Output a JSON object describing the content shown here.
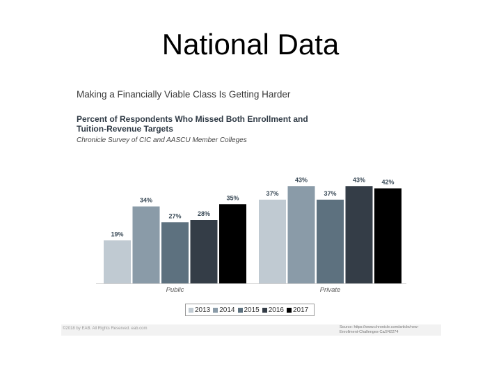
{
  "slide": {
    "title": "National Data"
  },
  "figure": {
    "headline": "Making a Financially Viable Class Is Getting Harder",
    "subtitle": "Percent of Respondents Who Missed Both Enrollment and Tuition-Revenue Targets",
    "survey": "Chronicle Survey of CIC and AASCU Member Colleges",
    "footer_left": "©2018 by EAB. All Rights Reserved. eab.com",
    "source_note": "Source: https://www.chronicle.com/article/new-Enrollment-Challenges-Ca/242274"
  },
  "chart_data": {
    "type": "bar",
    "categories": [
      "Public",
      "Private"
    ],
    "series": [
      {
        "name": "2013",
        "values": [
          19,
          37
        ],
        "color": "#c0cad2"
      },
      {
        "name": "2014",
        "values": [
          34,
          43
        ],
        "color": "#8a9ba8"
      },
      {
        "name": "2015",
        "values": [
          27,
          37
        ],
        "color": "#5d717f"
      },
      {
        "name": "2016",
        "values": [
          28,
          43
        ],
        "color": "#343d47"
      },
      {
        "name": "2017",
        "values": [
          35,
          42
        ],
        "color": "#000000"
      }
    ],
    "value_labels": [
      [
        "19%",
        "34%",
        "27%",
        "28%",
        "35%"
      ],
      [
        "37%",
        "43%",
        "37%",
        "43%",
        "42%"
      ]
    ],
    "ylim": [
      0,
      50
    ],
    "grid": false,
    "legend": "bottom-center"
  }
}
